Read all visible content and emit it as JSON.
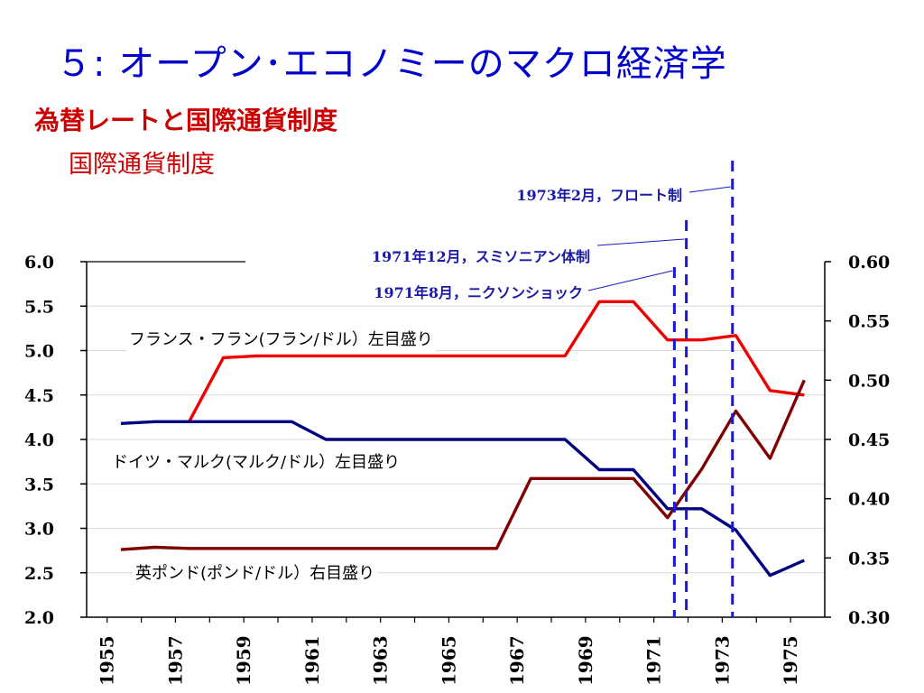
{
  "slide": {
    "title": "５: オープン･エコノミーのマクロ経済学",
    "subtitle": "為替レートと国際通貨制度",
    "section": "国際通貨制度"
  },
  "chart_data": {
    "type": "line",
    "x_ticks": [
      "1955",
      "1957",
      "1959",
      "1961",
      "1963",
      "1965",
      "1967",
      "1969",
      "1971",
      "1973",
      "1975"
    ],
    "left_axis": {
      "ylim": [
        2.0,
        6.0
      ],
      "ticks": [
        "2.0",
        "2.5",
        "3.0",
        "3.5",
        "4.0",
        "4.5",
        "5.0",
        "5.5",
        "6.0"
      ]
    },
    "right_axis": {
      "ylim": [
        0.3,
        0.6
      ],
      "ticks": [
        "0.30",
        "0.35",
        "0.40",
        "0.45",
        "0.50",
        "0.55",
        "0.60"
      ]
    },
    "series": [
      {
        "name": "フランス・フラン(フラン/ドル）左目盛り",
        "axis": "left",
        "color": "#ee0000",
        "x": [
          1957.4,
          1958.4,
          1959.4,
          1968.4,
          1969.4,
          1970.4,
          1971.4,
          1972.4,
          1973.4,
          1974.4,
          1975.4
        ],
        "y": [
          4.2,
          4.92,
          4.94,
          4.94,
          5.55,
          5.55,
          5.12,
          5.12,
          5.17,
          4.55,
          4.5
        ]
      },
      {
        "name": "ドイツ・マルク(マルク/ドル）左目盛り",
        "axis": "left",
        "color": "#000080",
        "x": [
          1955.4,
          1956.4,
          1957.4,
          1958.4,
          1959.4,
          1960.4,
          1961.4,
          1962.4,
          1963.4,
          1964.4,
          1965.4,
          1966.4,
          1967.4,
          1968.4,
          1969.4,
          1970.4,
          1971.4,
          1972.4,
          1973.4,
          1974.4,
          1975.4
        ],
        "y": [
          4.18,
          4.2,
          4.2,
          4.2,
          4.2,
          4.2,
          4.0,
          4.0,
          4.0,
          4.0,
          4.0,
          4.0,
          4.0,
          4.0,
          3.66,
          3.66,
          3.22,
          3.22,
          2.98,
          2.47,
          2.64
        ]
      },
      {
        "name": "英ポンド(ポンド/ドル）右目盛り",
        "axis": "right",
        "color": "#800000",
        "x": [
          1955.4,
          1956.4,
          1957.4,
          1958.4,
          1959.4,
          1960.4,
          1961.4,
          1962.4,
          1963.4,
          1964.4,
          1965.4,
          1966.4,
          1967.4,
          1968.4,
          1969.4,
          1970.4,
          1971.4,
          1972.4,
          1973.4,
          1974.4,
          1975.4
        ],
        "y": [
          0.357,
          0.359,
          0.358,
          0.358,
          0.358,
          0.358,
          0.358,
          0.358,
          0.358,
          0.358,
          0.358,
          0.358,
          0.417,
          0.417,
          0.417,
          0.417,
          0.384,
          0.425,
          0.474,
          0.434,
          0.5
        ]
      }
    ],
    "events": [
      {
        "label": "1971年8月，ニクソンショック",
        "x": 1971.6
      },
      {
        "label": "1971年12月，スミソニアン体制",
        "x": 1971.95
      },
      {
        "label": "1973年2月，フロート制",
        "x": 1973.3
      }
    ],
    "grid": true,
    "legend": "inline labels"
  }
}
